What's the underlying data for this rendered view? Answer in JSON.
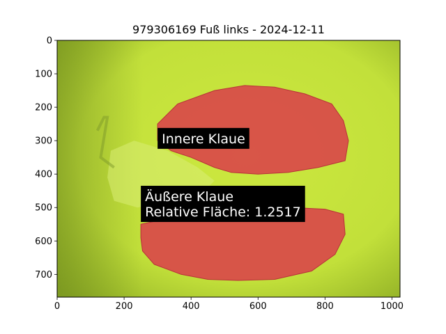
{
  "chart_data": {
    "type": "image",
    "title": "979306169 Fuß links - 2024-12-11",
    "xlabel": "",
    "ylabel": "",
    "xlim": [
      0,
      1024
    ],
    "ylim": [
      768,
      0
    ],
    "xticks": [
      0,
      200,
      400,
      600,
      800,
      1000
    ],
    "yticks": [
      0,
      100,
      200,
      300,
      400,
      500,
      600,
      700
    ],
    "background_color": "#c4e23a",
    "mask_color": "#d9414a",
    "regions": [
      {
        "label": "Innere Klaue",
        "polygon": [
          [
            300,
            250
          ],
          [
            360,
            190
          ],
          [
            470,
            150
          ],
          [
            560,
            135
          ],
          [
            650,
            140
          ],
          [
            740,
            160
          ],
          [
            820,
            190
          ],
          [
            855,
            240
          ],
          [
            870,
            300
          ],
          [
            860,
            360
          ],
          [
            780,
            380
          ],
          [
            690,
            395
          ],
          [
            600,
            400
          ],
          [
            520,
            395
          ],
          [
            470,
            380
          ],
          [
            400,
            350
          ],
          [
            340,
            330
          ],
          [
            300,
            300
          ]
        ],
        "annotation_lines": [
          "Innere Klaue"
        ],
        "annotation_anchor": [
          300,
          262
        ]
      },
      {
        "label": "Äußere Klaue",
        "polygon": [
          [
            250,
            550
          ],
          [
            320,
            535
          ],
          [
            430,
            510
          ],
          [
            560,
            505
          ],
          [
            700,
            500
          ],
          [
            800,
            505
          ],
          [
            855,
            520
          ],
          [
            860,
            580
          ],
          [
            830,
            640
          ],
          [
            760,
            690
          ],
          [
            650,
            715
          ],
          [
            540,
            718
          ],
          [
            450,
            715
          ],
          [
            370,
            700
          ],
          [
            290,
            670
          ],
          [
            255,
            630
          ],
          [
            250,
            590
          ]
        ],
        "annotation_lines": [
          "Äußere Klaue",
          "Relative Fläche: 1.2517"
        ],
        "annotation_anchor": [
          250,
          435
        ]
      }
    ]
  }
}
